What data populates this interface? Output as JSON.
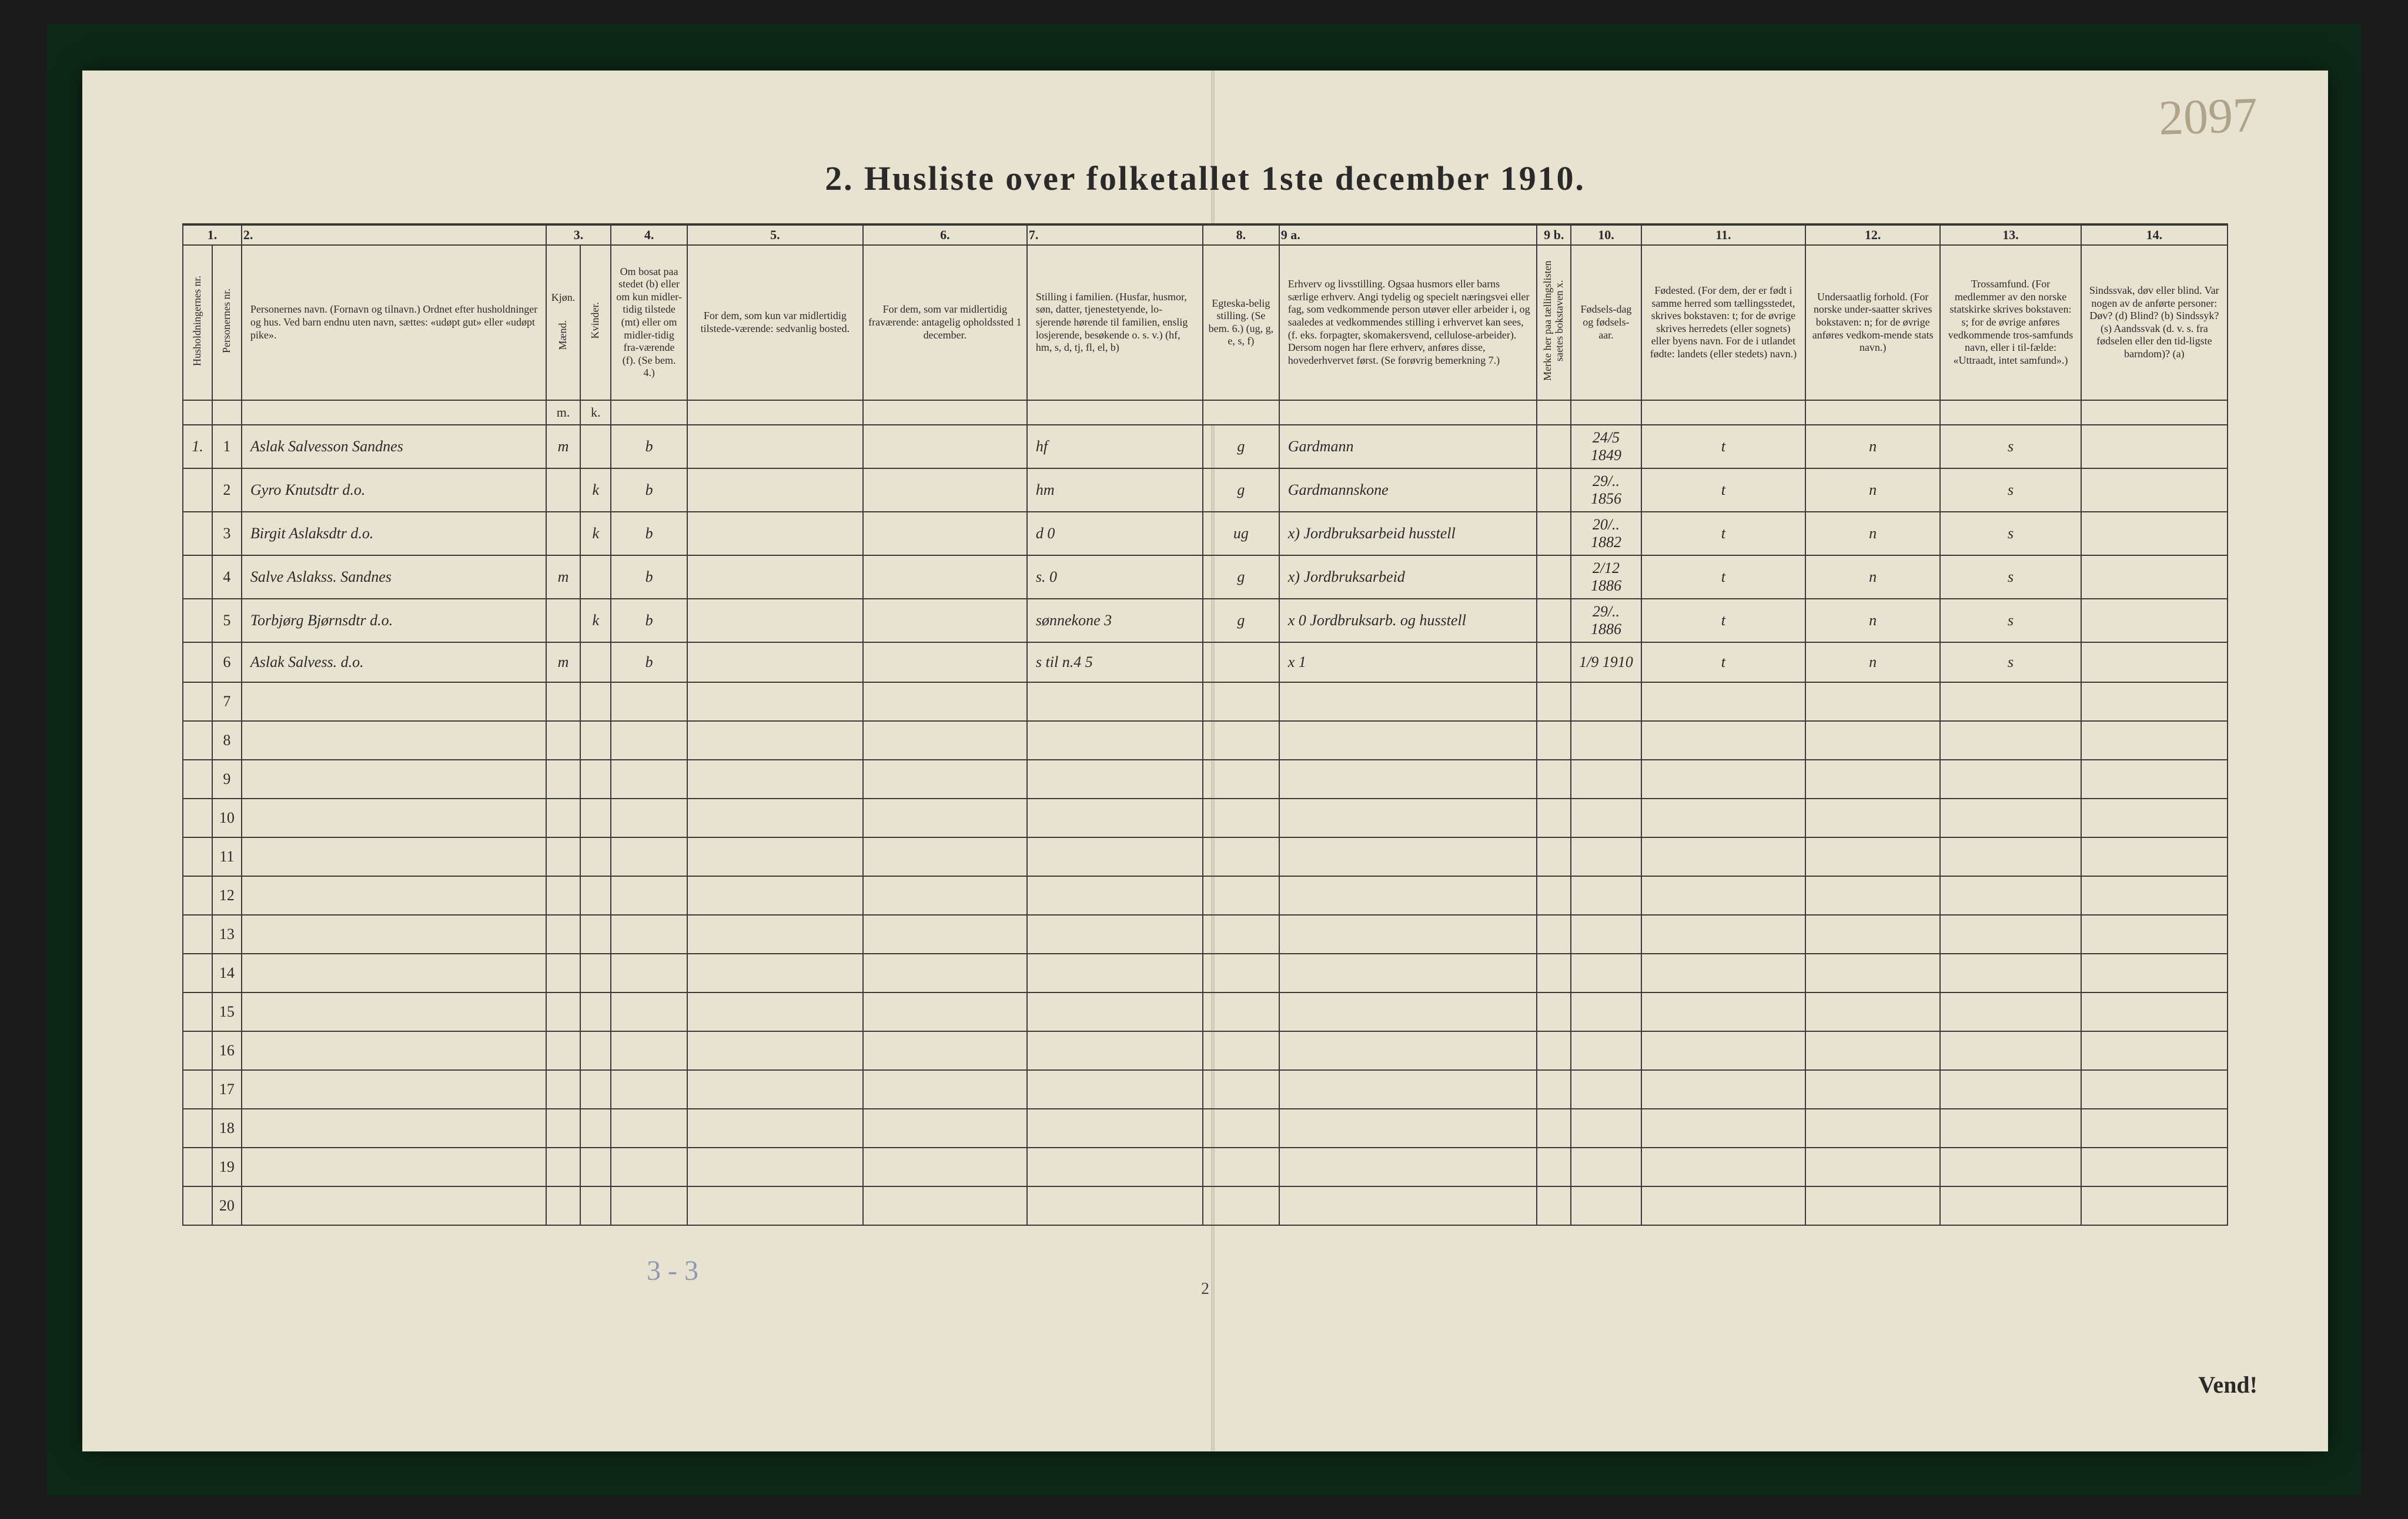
{
  "pencil_top_right": "2097",
  "title": "2.  Husliste over folketallet 1ste december 1910.",
  "col_nums": [
    "1.",
    "2.",
    "3.",
    "4.",
    "5.",
    "6.",
    "7.",
    "8.",
    "9 a.",
    "9 b.",
    "10.",
    "11.",
    "12.",
    "13.",
    "14."
  ],
  "headers": {
    "c1a": "Husholdningernes nr.",
    "c1b": "Personernes nr.",
    "c2": "Personernes navn.\n(Fornavn og tilnavn.)\nOrdnet efter husholdninger og hus.\nVed barn endnu uten navn, sættes: «udøpt gut» eller «udøpt pike».",
    "c3": "Kjøn.",
    "c3a": "Mænd.",
    "c3b": "Kvinder.",
    "c4": "Om bosat paa stedet (b) eller om kun midler-tidig tilstede (mt) eller om midler-tidig fra-værende (f). (Se bem. 4.)",
    "c5": "For dem, som kun var midlertidig tilstede-værende:\nsedvanlig bosted.",
    "c6": "For dem, som var midlertidig fraværende:\nantagelig opholdssted 1 december.",
    "c7": "Stilling i familien.\n(Husfar, husmor, søn, datter, tjenestetyende, lo-sjerende hørende til familien, enslig losjerende, besøkende o. s. v.)\n(hf, hm, s, d, tj, fl, el, b)",
    "c8": "Egteska-belig stilling.\n(Se bem. 6.)\n(ug, g, e, s, f)",
    "c9": "Erhverv og livsstilling.\nOgsaa husmors eller barns særlige erhverv. Angi tydelig og specielt næringsvei eller fag, som vedkommende person utøver eller arbeider i, og saaledes at vedkommendes stilling i erhvervet kan sees, (f. eks. forpagter, skomakersvend, cellulose-arbeider). Dersom nogen har flere erhverv, anføres disse, hovederhvervet først. (Se forøvrig bemerkning 7.)",
    "c9b": "Merke her paa tællingslisten saetes bokstaven x.",
    "c10": "Fødsels-dag og fødsels-aar.",
    "c11": "Fødested.\n(For dem, der er født i samme herred som tællingsstedet, skrives bokstaven: t; for de øvrige skrives herredets (eller sognets) eller byens navn. For de i utlandet fødte: landets (eller stedets) navn.)",
    "c12": "Undersaatlig forhold.\n(For norske under-saatter skrives bokstaven: n; for de øvrige anføres vedkom-mende stats navn.)",
    "c13": "Trossamfund.\n(For medlemmer av den norske statskirke skrives bokstaven: s; for de øvrige anføres vedkommende tros-samfunds navn, eller i til-fælde: «Uttraadt, intet samfund».)",
    "c14": "Sindssvak, døv eller blind.\nVar nogen av de anførte personer:\nDøv?  (d)\nBlind?  (b)\nSindssyk?  (s)\nAandssvak (d. v. s. fra fødselen eller den tid-ligste barndom)? (a)"
  },
  "rows": [
    {
      "hh": "1.",
      "pn": "1",
      "name": "Aslak Salvesson Sandnes",
      "m": "m",
      "k": "",
      "res": "b",
      "temp": "",
      "away": "",
      "fam": "hf",
      "marit": "g",
      "occ": "Gardmann",
      "x": "",
      "birth": "24/5 1849",
      "place": "t",
      "nat": "n",
      "faith": "s",
      "dis": ""
    },
    {
      "hh": "",
      "pn": "2",
      "name": "Gyro Knutsdtr d.o.",
      "m": "",
      "k": "k",
      "res": "b",
      "temp": "",
      "away": "",
      "fam": "hm",
      "marit": "g",
      "occ": "Gardmannskone",
      "x": "",
      "birth": "29/.. 1856",
      "place": "t",
      "nat": "n",
      "faith": "s",
      "dis": ""
    },
    {
      "hh": "",
      "pn": "3",
      "name": "Birgit Aslaksdtr d.o.",
      "m": "",
      "k": "k",
      "res": "b",
      "temp": "",
      "away": "",
      "fam": "d        0",
      "marit": "ug",
      "occ": "x) Jordbruksarbeid husstell",
      "x": "",
      "birth": "20/.. 1882",
      "place": "t",
      "nat": "n",
      "faith": "s",
      "dis": ""
    },
    {
      "hh": "",
      "pn": "4",
      "name": "Salve Aslakss. Sandnes",
      "m": "m",
      "k": "",
      "res": "b",
      "temp": "",
      "away": "",
      "fam": "s.        0",
      "marit": "g",
      "occ": "x) Jordbruksarbeid",
      "x": "",
      "birth": "2/12 1886",
      "place": "t",
      "nat": "n",
      "faith": "s",
      "dis": ""
    },
    {
      "hh": "",
      "pn": "5",
      "name": "Torbjørg Bjørnsdtr d.o.",
      "m": "",
      "k": "k",
      "res": "b",
      "temp": "",
      "away": "",
      "fam": "sønnekone 3",
      "marit": "g",
      "occ": "x 0 Jordbruksarb. og husstell",
      "x": "",
      "birth": "29/.. 1886",
      "place": "t",
      "nat": "n",
      "faith": "s",
      "dis": ""
    },
    {
      "hh": "",
      "pn": "6",
      "name": "Aslak Salvess. d.o.",
      "m": "m",
      "k": "",
      "res": "b",
      "temp": "",
      "away": "",
      "fam": "s til n.4  5",
      "marit": "",
      "occ": "x 1",
      "x": "",
      "birth": "1/9 1910",
      "place": "t",
      "nat": "n",
      "faith": "s",
      "dis": ""
    }
  ],
  "blank_row_nums": [
    "7",
    "8",
    "9",
    "10",
    "11",
    "12",
    "13",
    "14",
    "15",
    "16",
    "17",
    "18",
    "19",
    "20"
  ],
  "foot_pencil": "3 - 3",
  "page_number": "2",
  "vend": "Vend!"
}
